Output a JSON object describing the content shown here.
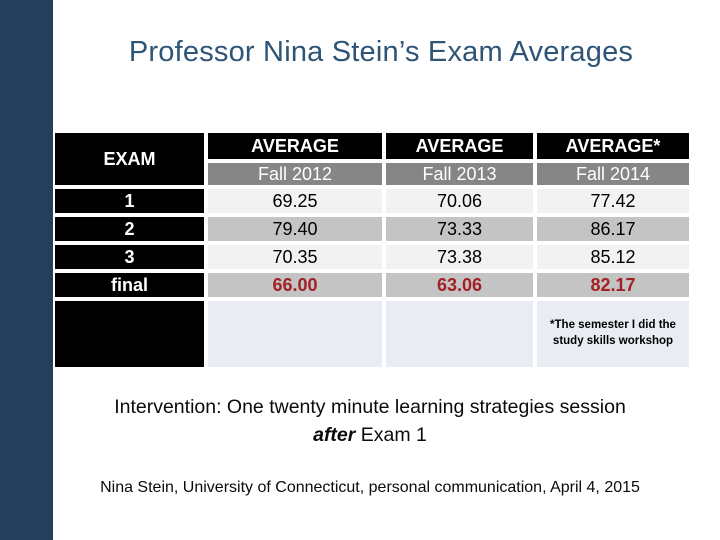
{
  "title": "Professor Nina Stein’s Exam Averages",
  "table": {
    "corner_header": "EXAM",
    "columns": [
      {
        "header": "AVERAGE",
        "subheader": "Fall 2012"
      },
      {
        "header": "AVERAGE",
        "subheader": "Fall 2013"
      },
      {
        "header": "AVERAGE*",
        "subheader": "Fall 2014"
      }
    ],
    "rows": [
      {
        "exam": "1",
        "values": [
          "69.25",
          "70.06",
          "77.42"
        ]
      },
      {
        "exam": "2",
        "values": [
          "79.40",
          "73.33",
          "86.17"
        ]
      },
      {
        "exam": "3",
        "values": [
          "70.35",
          "73.38",
          "85.12"
        ]
      },
      {
        "exam": "final",
        "values": [
          "66.00",
          "63.06",
          "82.17"
        ]
      }
    ],
    "footnote": "*The semester I did the study skills workshop"
  },
  "intervention": {
    "line1": "Intervention: One twenty minute learning strategies session",
    "line2_emphasis": "after",
    "line2_rest": " Exam 1"
  },
  "citation": "Nina Stein, University of Connecticut, personal communication, April 4, 2015",
  "colors": {
    "sidebar": "#263E5D",
    "title": "#2E5476",
    "header_bg": "#000000",
    "subheader_bg": "#868686",
    "row_light": "#F2F2F2",
    "row_dark": "#C4C4C4",
    "note_bg": "#E9EDF3",
    "highlight_value": "#A32126"
  },
  "chart_data": {
    "type": "table",
    "title": "Professor Nina Stein’s Exam Averages",
    "categories": [
      "1",
      "2",
      "3",
      "final"
    ],
    "series": [
      {
        "name": "AVERAGE Fall 2012",
        "values": [
          69.25,
          79.4,
          70.35,
          66.0
        ]
      },
      {
        "name": "AVERAGE Fall 2013",
        "values": [
          70.06,
          73.33,
          73.38,
          63.06
        ]
      },
      {
        "name": "AVERAGE* Fall 2014",
        "values": [
          77.42,
          86.17,
          85.12,
          82.17
        ]
      }
    ]
  }
}
